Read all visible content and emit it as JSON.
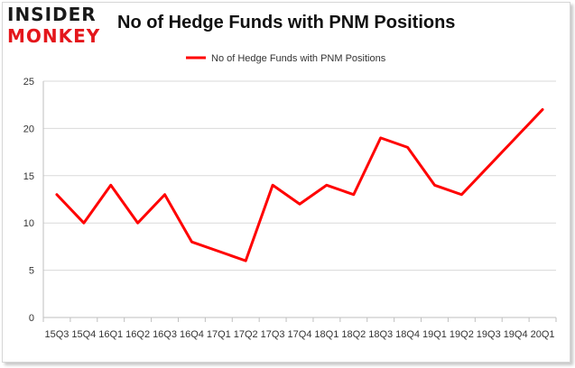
{
  "logo": {
    "line1": "INSIDER",
    "line2": "MONKEY"
  },
  "chart_data": {
    "type": "line",
    "title": "No of Hedge Funds with PNM Positions",
    "xlabel": "",
    "ylabel": "",
    "categories": [
      "2015Q3",
      "2015Q4",
      "2016Q1",
      "2016Q2",
      "2016Q3",
      "2016Q4",
      "2017Q1",
      "2017Q2",
      "2017Q3",
      "2017Q4",
      "2018Q1",
      "2018Q2",
      "2018Q3",
      "2018Q4",
      "2019Q1",
      "2019Q2",
      "2019Q3",
      "2019Q4",
      "2020Q1"
    ],
    "tick_labels": [
      "15Q3",
      "15Q4",
      "16Q1",
      "16Q2",
      "16Q3",
      "16Q4",
      "17Q1",
      "17Q2",
      "17Q3",
      "17Q4",
      "18Q1",
      "18Q2",
      "18Q3",
      "18Q4",
      "19Q1",
      "19Q2",
      "19Q3",
      "19Q4",
      "20Q1"
    ],
    "series": [
      {
        "name": "No of Hedge Funds with PNM Positions",
        "color": "#ff0000",
        "values": [
          13,
          10,
          14,
          10,
          13,
          8,
          7,
          6,
          14,
          12,
          14,
          13,
          19,
          18,
          14,
          13,
          16,
          19,
          22
        ]
      }
    ],
    "ylim": [
      0,
      25
    ],
    "yticks": [
      0,
      5,
      10,
      15,
      20,
      25
    ],
    "grid": true,
    "legend": "top-center"
  }
}
